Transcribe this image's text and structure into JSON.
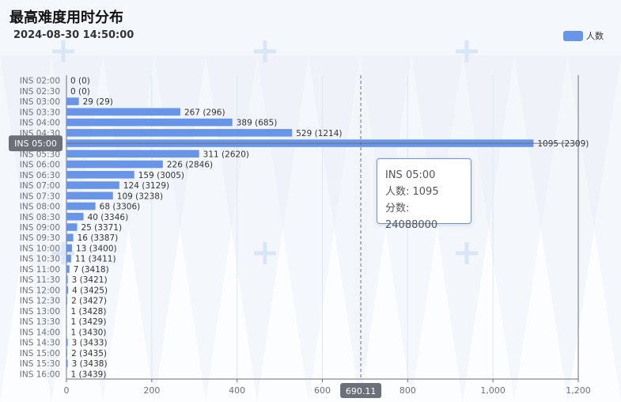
{
  "title": "最高难度用时分布",
  "subtitle": "2024-08-30 14:50:00",
  "legend_label": "人数",
  "tooltip": {
    "title": "INS 05:00",
    "line1": "人数: 1095",
    "line2": "分数: 24088000"
  },
  "pointer": {
    "x_value": 690.11,
    "x_label": "690.11",
    "y_label": "INS 05:00"
  },
  "colors": {
    "bar": "#6895e8",
    "axis": "#6e7079",
    "grid": "#e0e6f1",
    "pointer_label_bg": "#6e7079"
  },
  "chart_data": {
    "type": "bar",
    "orientation": "horizontal",
    "categories": [
      "INS 02:00",
      "INS 02:30",
      "INS 03:00",
      "INS 03:30",
      "INS 04:00",
      "INS 04:30",
      "INS 05:00",
      "INS 05:30",
      "INS 06:00",
      "INS 06:30",
      "INS 07:00",
      "INS 07:30",
      "INS 08:00",
      "INS 08:30",
      "INS 09:00",
      "INS 09:30",
      "INS 10:00",
      "INS 10:30",
      "INS 11:00",
      "INS 11:30",
      "INS 12:00",
      "INS 12:30",
      "INS 13:00",
      "INS 13:30",
      "INS 14:00",
      "INS 14:30",
      "INS 15:00",
      "INS 15:30",
      "INS 16:00"
    ],
    "series": [
      {
        "name": "人数",
        "values": [
          0,
          0,
          29,
          267,
          389,
          529,
          1095,
          311,
          226,
          159,
          124,
          109,
          68,
          40,
          25,
          16,
          13,
          11,
          7,
          3,
          4,
          2,
          1,
          1,
          1,
          3,
          2,
          3,
          1
        ]
      }
    ],
    "data_labels": [
      "0 (0)",
      "0 (0)",
      "29 (29)",
      "267 (296)",
      "389 (685)",
      "529 (1214)",
      "1095 (2309)",
      "311 (2620)",
      "226 (2846)",
      "159 (3005)",
      "124 (3129)",
      "109 (3238)",
      "68 (3306)",
      "40 (3346)",
      "25 (3371)",
      "16 (3387)",
      "13 (3400)",
      "11 (3411)",
      "7 (3418)",
      "3 (3421)",
      "4 (3425)",
      "2 (3427)",
      "1 (3428)",
      "1 (3429)",
      "1 (3430)",
      "3 (3433)",
      "2 (3435)",
      "3 (3438)",
      "1 (3439)"
    ],
    "x_ticks": [
      0,
      200,
      400,
      600,
      800,
      1000,
      1200
    ],
    "x_tick_labels": [
      "0",
      "200",
      "400",
      "600",
      "800",
      "1,000",
      "1,200"
    ],
    "xlim": [
      0,
      1200
    ],
    "grid": true,
    "legend_position": "top-right",
    "highlighted_category": "INS 05:00"
  }
}
